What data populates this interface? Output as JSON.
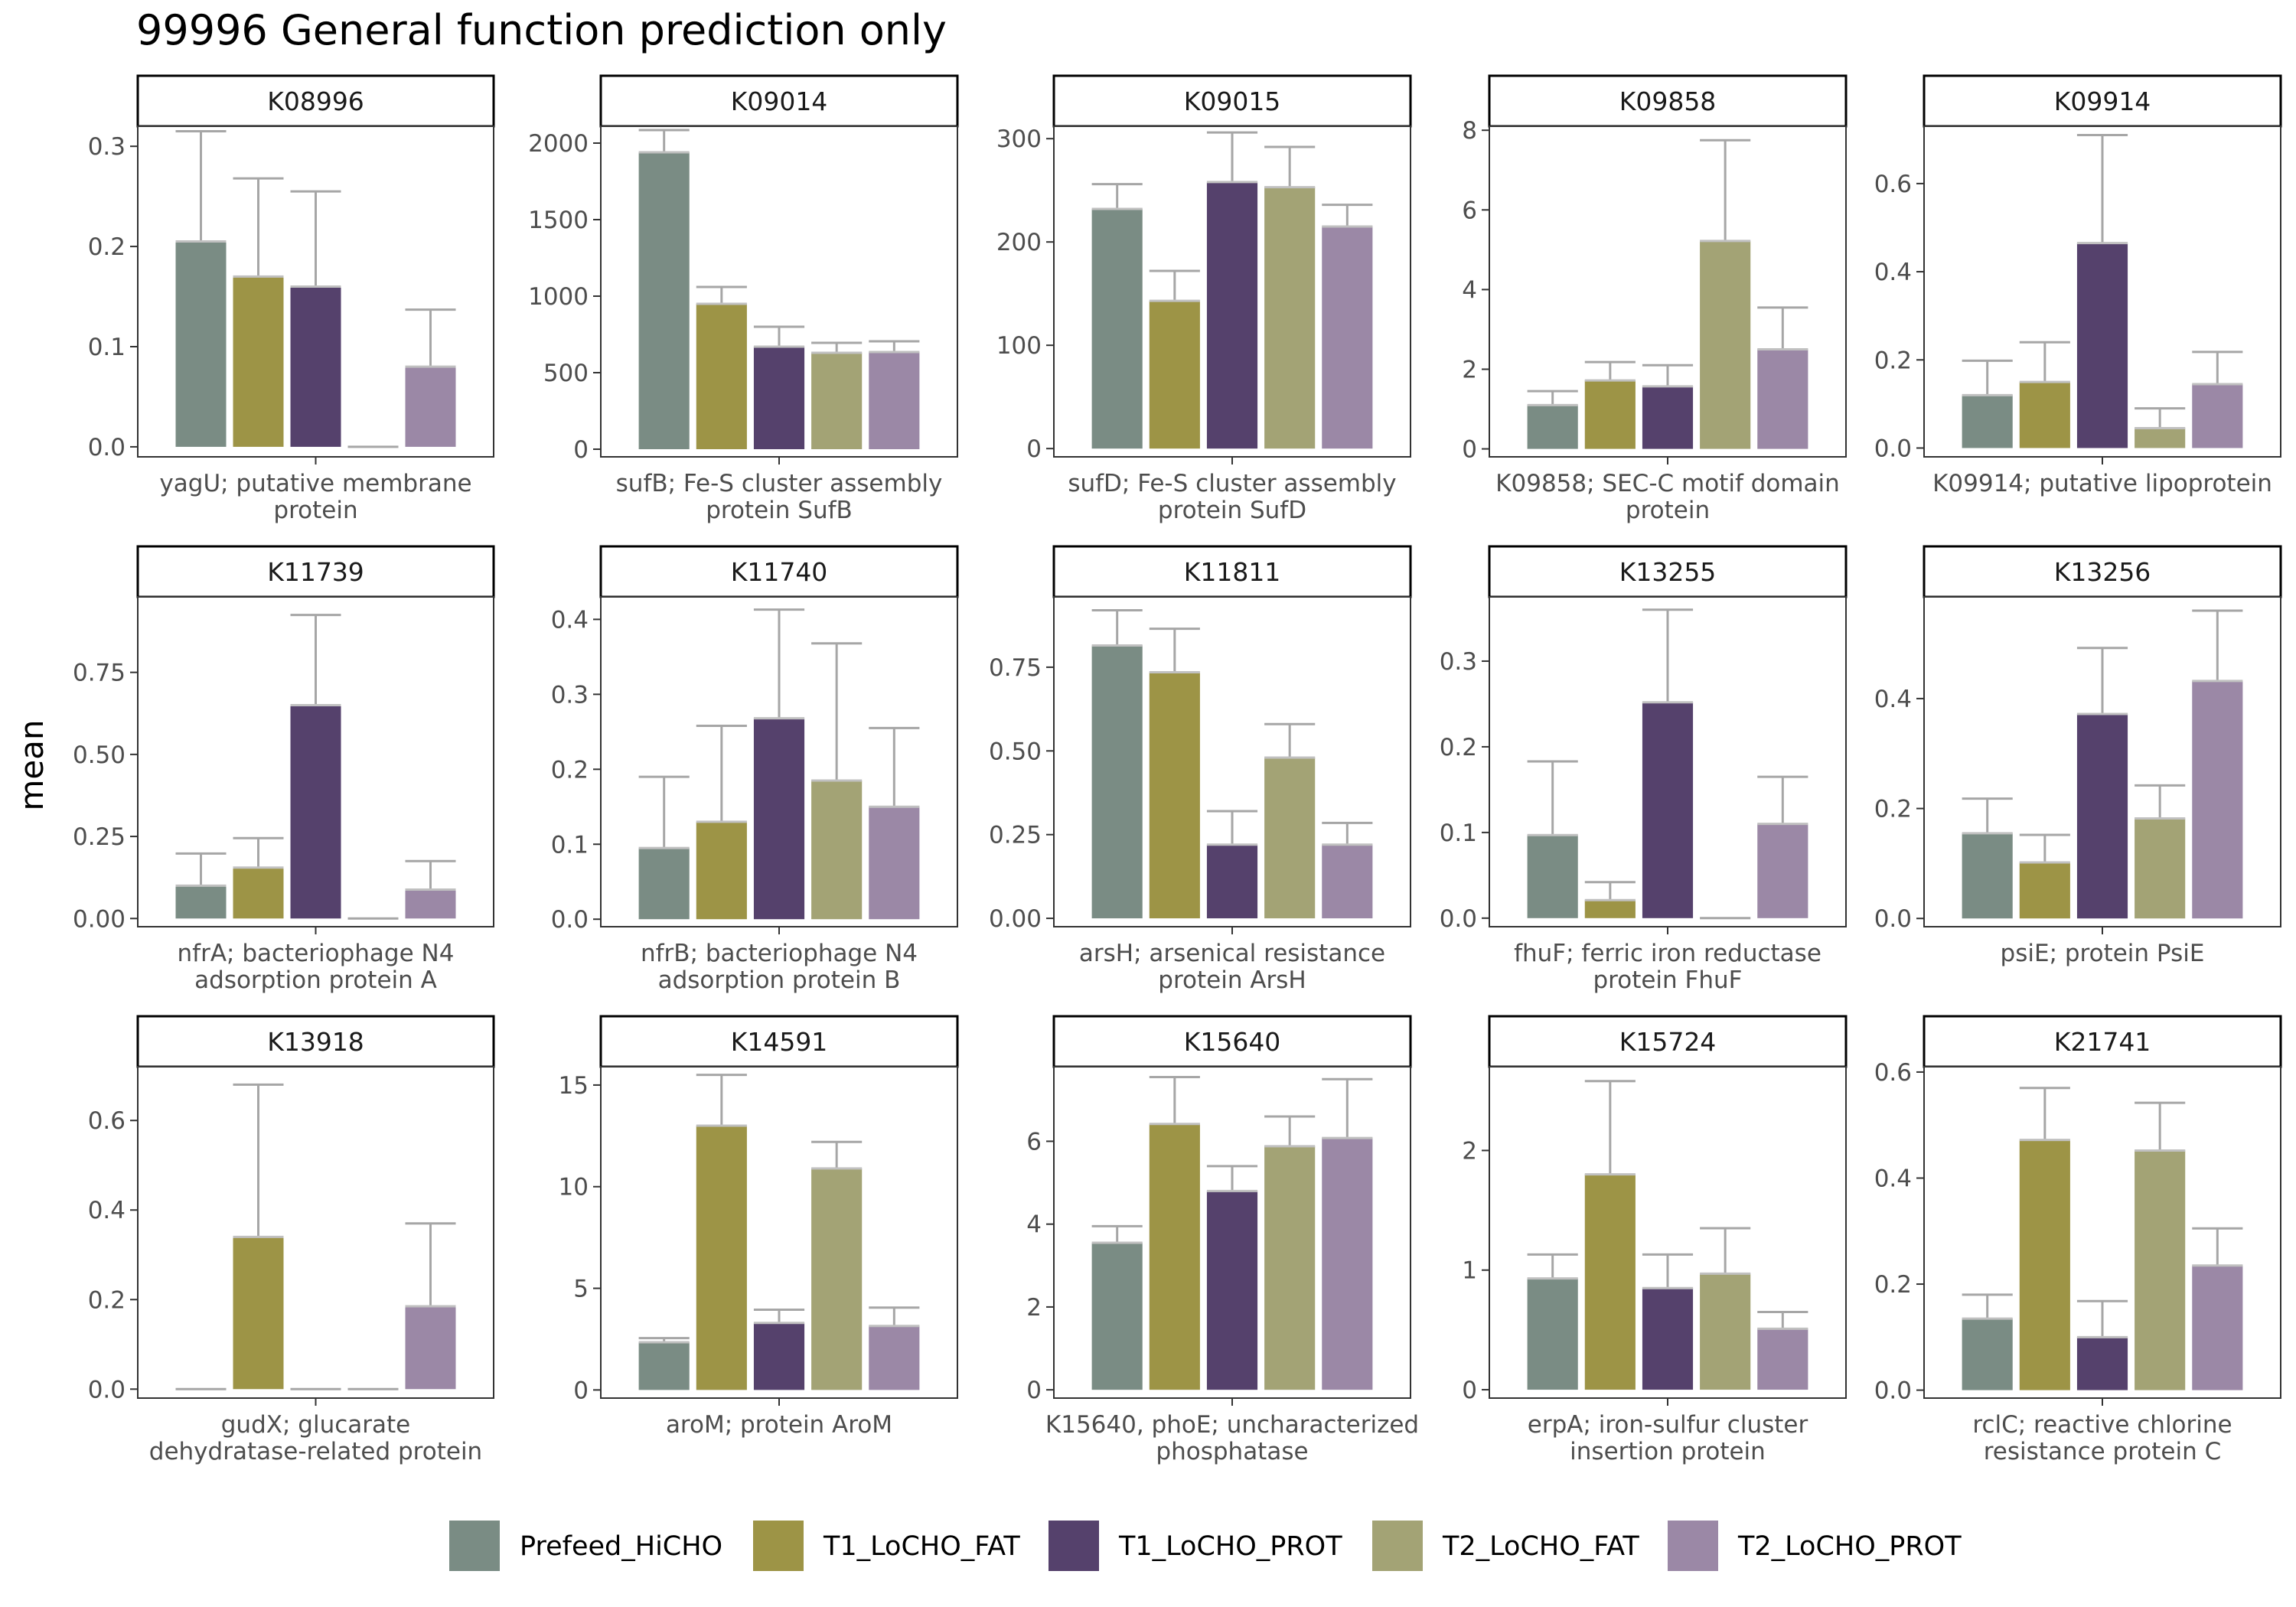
{
  "chart_data": {
    "type": "bar",
    "title": "99996 General function prediction only",
    "ylabel": "mean",
    "legend_position": "bottom",
    "grid": false,
    "groups": [
      "Prefeed_HiCHO",
      "T1_LoCHO_FAT",
      "T1_LoCHO_PROT",
      "T2_LoCHO_FAT",
      "T2_LoCHO_PROT"
    ],
    "colors": [
      "#7a8c84",
      "#9d9446",
      "#55416c",
      "#a3a375",
      "#9b88a6"
    ],
    "panels": [
      {
        "id": "K08996",
        "description": "yagU; putative membrane protein",
        "ylim": [
          -0.01,
          0.32
        ],
        "ticks": [
          0,
          0.1,
          0.2,
          0.3
        ],
        "tick_labels": [
          "0.0",
          "0.1",
          "0.2",
          "0.3"
        ],
        "values": [
          0.205,
          0.17,
          0.16,
          0.0,
          0.08
        ],
        "err_upper": [
          0.315,
          0.268,
          0.255,
          0.0,
          0.137
        ]
      },
      {
        "id": "K09014",
        "description": "sufB; Fe-S cluster assembly protein SufB",
        "ylim": [
          -50,
          2110
        ],
        "ticks": [
          0,
          500,
          1000,
          1500,
          2000
        ],
        "tick_labels": [
          "0",
          "500",
          "1000",
          "1500",
          "2000"
        ],
        "values": [
          1940,
          950,
          670,
          630,
          635
        ],
        "err_upper": [
          2085,
          1060,
          800,
          695,
          705
        ]
      },
      {
        "id": "K09015",
        "description": "sufD; Fe-S cluster assembly protein SufD",
        "ylim": [
          -8,
          312
        ],
        "ticks": [
          0,
          100,
          200,
          300
        ],
        "tick_labels": [
          "0",
          "100",
          "200",
          "300"
        ],
        "values": [
          232,
          143,
          258,
          253,
          215
        ],
        "err_upper": [
          256,
          172,
          306,
          292,
          236
        ]
      },
      {
        "id": "K09858",
        "description": "K09858; SEC-C motif domain protein",
        "ylim": [
          -0.2,
          8.1
        ],
        "ticks": [
          0,
          2,
          4,
          6,
          8
        ],
        "tick_labels": [
          "0",
          "2",
          "4",
          "6",
          "8"
        ],
        "values": [
          1.1,
          1.72,
          1.57,
          5.22,
          2.5
        ],
        "err_upper": [
          1.45,
          2.18,
          2.1,
          7.75,
          3.55
        ]
      },
      {
        "id": "K09914",
        "description": "K09914; putative lipoprotein",
        "ylim": [
          -0.02,
          0.73
        ],
        "ticks": [
          0,
          0.2,
          0.4,
          0.6
        ],
        "tick_labels": [
          "0.0",
          "0.2",
          "0.4",
          "0.6"
        ],
        "values": [
          0.12,
          0.15,
          0.465,
          0.045,
          0.145
        ],
        "err_upper": [
          0.198,
          0.24,
          0.71,
          0.09,
          0.218
        ]
      },
      {
        "id": "K11739",
        "description": "nfrA; bacteriophage N4 adsorption protein A",
        "ylim": [
          -0.025,
          0.98
        ],
        "ticks": [
          0,
          0.25,
          0.5,
          0.75
        ],
        "tick_labels": [
          "0.00",
          "0.25",
          "0.50",
          "0.75"
        ],
        "values": [
          0.1,
          0.155,
          0.65,
          0.0,
          0.088
        ],
        "err_upper": [
          0.198,
          0.245,
          0.925,
          0.0,
          0.175
        ]
      },
      {
        "id": "K11740",
        "description": "nfrB; bacteriophage N4 adsorption protein B",
        "ylim": [
          -0.01,
          0.43
        ],
        "ticks": [
          0,
          0.1,
          0.2,
          0.3,
          0.4
        ],
        "tick_labels": [
          "0.0",
          "0.1",
          "0.2",
          "0.3",
          "0.4"
        ],
        "values": [
          0.095,
          0.13,
          0.268,
          0.185,
          0.15
        ],
        "err_upper": [
          0.19,
          0.258,
          0.413,
          0.368,
          0.255
        ]
      },
      {
        "id": "K11811",
        "description": "arsH; arsenical resistance protein ArsH",
        "ylim": [
          -0.025,
          0.96
        ],
        "ticks": [
          0,
          0.25,
          0.5,
          0.75
        ],
        "tick_labels": [
          "0.00",
          "0.25",
          "0.50",
          "0.75"
        ],
        "values": [
          0.815,
          0.735,
          0.22,
          0.48,
          0.22
        ],
        "err_upper": [
          0.92,
          0.865,
          0.32,
          0.58,
          0.285
        ]
      },
      {
        "id": "K13255",
        "description": "fhuF; ferric iron reductase protein FhuF",
        "ylim": [
          -0.01,
          0.375
        ],
        "ticks": [
          0,
          0.1,
          0.2,
          0.3
        ],
        "tick_labels": [
          "0.0",
          "0.1",
          "0.2",
          "0.3"
        ],
        "values": [
          0.097,
          0.021,
          0.252,
          0.0,
          0.11
        ],
        "err_upper": [
          0.183,
          0.042,
          0.36,
          0.0,
          0.165
        ]
      },
      {
        "id": "K13256",
        "description": "psiE; protein PsiE",
        "ylim": [
          -0.015,
          0.585
        ],
        "ticks": [
          0,
          0.2,
          0.4
        ],
        "tick_labels": [
          "0.0",
          "0.2",
          "0.4"
        ],
        "values": [
          0.155,
          0.102,
          0.372,
          0.182,
          0.432
        ],
        "err_upper": [
          0.218,
          0.152,
          0.492,
          0.242,
          0.56
        ]
      },
      {
        "id": "K13918",
        "description": "gudX; glucarate dehydratase-related protein",
        "ylim": [
          -0.02,
          0.72
        ],
        "ticks": [
          0,
          0.2,
          0.4,
          0.6
        ],
        "tick_labels": [
          "0.0",
          "0.2",
          "0.4",
          "0.6"
        ],
        "values": [
          0.0,
          0.34,
          0.0,
          0.0,
          0.185
        ],
        "err_upper": [
          0.0,
          0.68,
          0.0,
          0.0,
          0.37
        ]
      },
      {
        "id": "K14591",
        "description": "aroM; protein AroM",
        "ylim": [
          -0.4,
          15.9
        ],
        "ticks": [
          0,
          5,
          10,
          15
        ],
        "tick_labels": [
          "0",
          "5",
          "10",
          "15"
        ],
        "values": [
          2.35,
          13.0,
          3.3,
          10.9,
          3.15
        ],
        "err_upper": [
          2.55,
          15.5,
          3.95,
          12.2,
          4.05
        ]
      },
      {
        "id": "K15640",
        "description": "K15640, phoE; uncharacterized phosphatase",
        "ylim": [
          -0.2,
          7.8
        ],
        "ticks": [
          0,
          2,
          4,
          6
        ],
        "tick_labels": [
          "0",
          "2",
          "4",
          "6"
        ],
        "values": [
          3.55,
          6.42,
          4.8,
          5.88,
          6.08
        ],
        "err_upper": [
          3.95,
          7.55,
          5.4,
          6.6,
          7.5
        ]
      },
      {
        "id": "K15724",
        "description": "erpA; iron-sulfur cluster insertion protein",
        "ylim": [
          -0.07,
          2.7
        ],
        "ticks": [
          0,
          1,
          2
        ],
        "tick_labels": [
          "0",
          "1",
          "2"
        ],
        "values": [
          0.93,
          1.8,
          0.85,
          0.97,
          0.51
        ],
        "err_upper": [
          1.13,
          2.58,
          1.13,
          1.35,
          0.65
        ]
      },
      {
        "id": "K21741",
        "description": "rclC; reactive chlorine resistance protein C",
        "ylim": [
          -0.015,
          0.61
        ],
        "ticks": [
          0,
          0.2,
          0.4,
          0.6
        ],
        "tick_labels": [
          "0.0",
          "0.2",
          "0.4",
          "0.6"
        ],
        "values": [
          0.135,
          0.472,
          0.1,
          0.452,
          0.235
        ],
        "err_upper": [
          0.18,
          0.57,
          0.168,
          0.542,
          0.305
        ]
      }
    ]
  }
}
